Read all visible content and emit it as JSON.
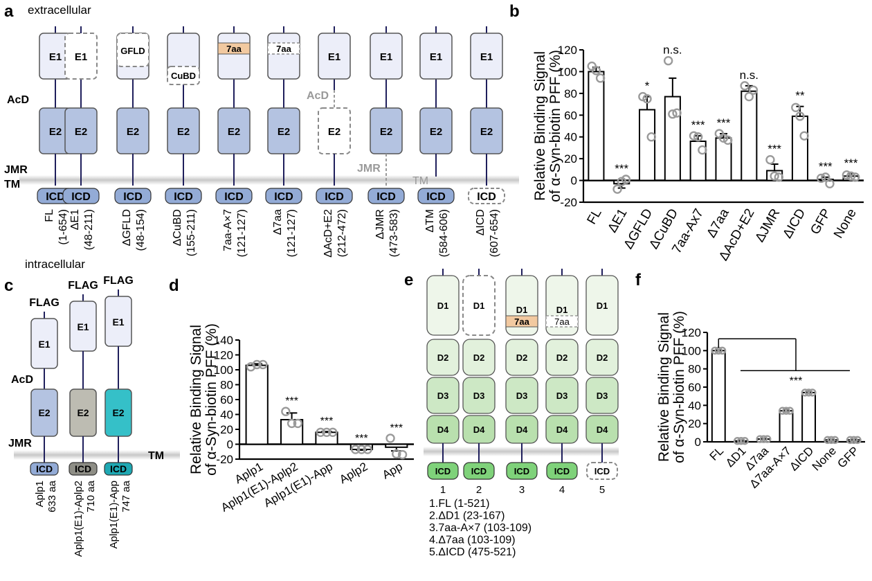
{
  "panel_a": {
    "letter": "a",
    "extracellular": "extracellular",
    "intracellular": "intracellular",
    "acd": "AcD",
    "jmr": "JMR",
    "tm": "TM",
    "acd_missing": "AcD",
    "jmr_missing": "JMR",
    "tm_missing": "TM",
    "e1": "E1",
    "e2": "E2",
    "icd": "ICD",
    "gfld": "GFLD",
    "cubd": "CuBD",
    "seven_aa": "7aa",
    "constructs": [
      {
        "name": "FL",
        "range": "(1-654)"
      },
      {
        "name": "ΔE1",
        "range": "(48-211)"
      },
      {
        "name": "ΔGFLD",
        "range": "(48-154)"
      },
      {
        "name": "ΔCuBD",
        "range": "(155-211)"
      },
      {
        "name": "7aa-A×7",
        "range": "(121-127)"
      },
      {
        "name": "Δ7aa",
        "range": "(121-127)"
      },
      {
        "name": "ΔAcD+E2",
        "range": "(212-472)"
      },
      {
        "name": "ΔJMR",
        "range": "(473-583)"
      },
      {
        "name": "ΔTM",
        "range": "(584-606)"
      },
      {
        "name": "ΔICD",
        "range": "(607-654)"
      }
    ]
  },
  "panel_c": {
    "letter": "c",
    "flag": "FLAG",
    "e1": "E1",
    "e2": "E2",
    "icd": "ICD",
    "acd": "AcD",
    "jmr": "JMR",
    "tm": "TM",
    "colors": {
      "aplp1_e2": "#b4c3e1",
      "aplp2_e2": "#bdbcb2",
      "app_e2": "#35c0c8"
    },
    "constructs": [
      {
        "name": "Aplp1",
        "size": "633 aa"
      },
      {
        "name": "Aplp1(E1)-Aplp2",
        "size": "710 aa"
      },
      {
        "name": "Aplp1(E1)-App",
        "size": "747 aa"
      }
    ]
  },
  "panel_e": {
    "letter": "e",
    "d1": "D1",
    "d2": "D2",
    "d3": "D3",
    "d4": "D4",
    "icd": "ICD",
    "seven_aa": "7aa",
    "numbers": [
      "1",
      "2",
      "3",
      "4",
      "5"
    ],
    "legend": [
      "1.FL (1-521)",
      "2.ΔD1 (23-167)",
      "3.7aa-A×7 (103-109)",
      "4.Δ7aa (103-109)",
      "5.ΔICD  (475-521)"
    ]
  },
  "chart_data": [
    {
      "panel": "b",
      "type": "bar",
      "ylabel_line1": "Relative Binding Signal",
      "ylabel_line2": "of α-Syn-biotin PFF (%)",
      "ylim": [
        -20,
        120
      ],
      "yticks": [
        "-20",
        "0",
        "20",
        "40",
        "60",
        "80",
        "100",
        "120"
      ],
      "categories": [
        "FL",
        "ΔE1",
        "ΔGFLD",
        "ΔCuBD",
        "7aa-Ax7",
        "Δ7aa",
        "ΔAcD+E2",
        "ΔJMR",
        "ΔICD",
        "GFP",
        "None"
      ],
      "values": [
        100,
        -3,
        65,
        77,
        36,
        39,
        82,
        9,
        59,
        1,
        4
      ],
      "errors": [
        4,
        4,
        12,
        17,
        5,
        4,
        5,
        6,
        9,
        2,
        2
      ],
      "points": [
        [
          105,
          101,
          94
        ],
        [
          -8,
          -1,
          1
        ],
        [
          77,
          75,
          40
        ],
        [
          110,
          61,
          62
        ],
        [
          41,
          40,
          28
        ],
        [
          43,
          39,
          37
        ],
        [
          87,
          77,
          83
        ],
        [
          19,
          4,
          3
        ],
        [
          67,
          59,
          41
        ],
        [
          2,
          3,
          -3
        ],
        [
          5,
          4,
          3
        ]
      ],
      "significance": [
        "",
        "***",
        "*",
        "n.s.",
        "***",
        "***",
        "n.s.",
        "***",
        "**",
        "***",
        "***"
      ]
    },
    {
      "panel": "d",
      "type": "bar",
      "ylabel_line1": "Relative Binding Signal",
      "ylabel_line2": "of α-Syn-biotin PFF (%)",
      "ylim": [
        -20,
        140
      ],
      "yticks": [
        "-20",
        "0",
        "20",
        "40",
        "60",
        "80",
        "100",
        "120",
        "140"
      ],
      "categories": [
        "Aplp1",
        "Aplp1(E1)-Aplp2",
        "Aplp1(E1)-App",
        "Aplp2",
        "App"
      ],
      "values": [
        106,
        33,
        16,
        -7,
        -4
      ],
      "errors": [
        2,
        9,
        1,
        1,
        5
      ],
      "points": [
        [
          104,
          107,
          107
        ],
        [
          44,
          28,
          28
        ],
        [
          16,
          16,
          16
        ],
        [
          -7,
          -7,
          -7
        ],
        [
          8,
          -13,
          -14
        ]
      ],
      "significance": [
        "",
        "***",
        "***",
        "***",
        "***"
      ]
    },
    {
      "panel": "f",
      "type": "bar",
      "ylabel_line1": "Relative Binding Signal",
      "ylabel_line2": "of α-Syn-biotin PFF (%)",
      "ylim": [
        0,
        120
      ],
      "yticks": [
        "0",
        "20",
        "40",
        "60",
        "80",
        "100",
        "120"
      ],
      "categories": [
        "FL",
        "ΔD1",
        "Δ7aa",
        "Δ7aa-A×7",
        "ΔICD",
        "None",
        "GFP"
      ],
      "values": [
        100,
        1,
        3,
        34,
        54,
        2,
        2
      ],
      "errors": [
        1,
        0.5,
        0.5,
        1.5,
        1.5,
        0.5,
        0.5
      ],
      "points": [
        [
          100,
          100,
          100
        ],
        [
          1,
          1,
          1
        ],
        [
          3,
          3,
          3
        ],
        [
          34,
          34,
          34
        ],
        [
          54,
          54,
          54
        ],
        [
          2,
          2,
          2
        ],
        [
          2,
          2,
          2
        ]
      ],
      "significance": "***"
    }
  ]
}
